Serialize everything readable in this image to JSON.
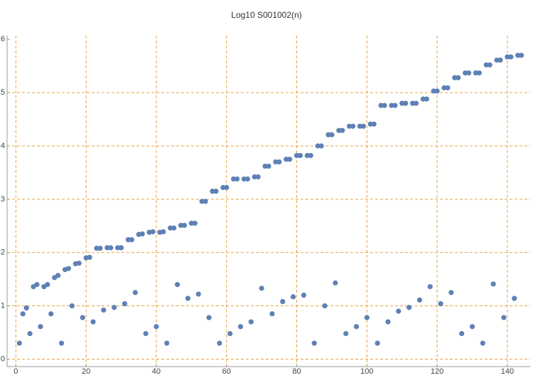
{
  "chart_data": {
    "type": "scatter",
    "title": "Log10 S001002(n)",
    "color": "#5e81b5",
    "grid": true,
    "grid_color": "#e8a23c",
    "xlim": [
      -2.5,
      146.5
    ],
    "ylim": [
      -0.14,
      6.07
    ],
    "xticks": [
      0,
      20,
      40,
      60,
      80,
      100,
      120,
      140
    ],
    "yticks": [
      0,
      1,
      2,
      3,
      4,
      5,
      6
    ],
    "x": [
      1,
      2,
      3,
      4,
      5,
      6,
      7,
      8,
      9,
      10,
      11,
      12,
      13,
      14,
      15,
      16,
      17,
      18,
      19,
      20,
      21,
      22,
      23,
      24,
      25,
      26,
      27,
      28,
      29,
      30,
      31,
      32,
      33,
      34,
      35,
      36,
      37,
      38,
      39,
      40,
      41,
      42,
      43,
      44,
      45,
      46,
      47,
      48,
      49,
      50,
      51,
      52,
      53,
      54,
      55,
      56,
      57,
      58,
      59,
      60,
      61,
      62,
      63,
      64,
      65,
      66,
      67,
      68,
      69,
      70,
      71,
      72,
      73,
      74,
      75,
      76,
      77,
      78,
      79,
      80,
      81,
      82,
      83,
      84,
      85,
      86,
      87,
      88,
      89,
      90,
      91,
      92,
      93,
      94,
      95,
      96,
      97,
      98,
      99,
      100,
      101,
      102,
      103,
      104,
      105,
      106,
      107,
      108,
      109,
      110,
      111,
      112,
      113,
      114,
      115,
      116,
      117,
      118,
      119,
      120,
      121,
      122,
      123,
      124,
      125,
      126,
      127,
      128,
      129,
      130,
      131,
      132,
      133,
      134,
      135,
      136,
      137,
      138,
      139,
      140,
      141,
      142,
      143,
      144
    ],
    "values": [
      0.3,
      0.85,
      0.96,
      0.48,
      1.36,
      1.4,
      0.61,
      1.36,
      1.4,
      0.85,
      1.53,
      1.57,
      0.3,
      1.68,
      1.7,
      1.0,
      1.79,
      1.8,
      0.78,
      1.9,
      1.91,
      0.7,
      2.08,
      2.08,
      0.92,
      2.09,
      2.09,
      0.97,
      2.09,
      2.09,
      1.04,
      2.24,
      2.24,
      1.25,
      2.34,
      2.35,
      0.48,
      2.38,
      2.39,
      0.61,
      2.38,
      2.39,
      0.3,
      2.46,
      2.46,
      1.4,
      2.51,
      2.51,
      1.14,
      2.55,
      2.55,
      1.22,
      2.96,
      2.96,
      0.78,
      3.15,
      3.15,
      0.3,
      3.22,
      3.22,
      0.48,
      3.38,
      3.38,
      0.61,
      3.38,
      3.38,
      0.7,
      3.42,
      3.42,
      1.33,
      3.62,
      3.62,
      0.85,
      3.7,
      3.7,
      1.08,
      3.75,
      3.75,
      1.17,
      3.82,
      3.82,
      1.2,
      3.82,
      3.82,
      0.3,
      4.0,
      4.0,
      1.0,
      4.21,
      4.21,
      1.43,
      4.29,
      4.29,
      0.48,
      4.37,
      4.37,
      0.61,
      4.37,
      4.37,
      0.78,
      4.41,
      4.41,
      0.3,
      4.76,
      4.76,
      0.7,
      4.76,
      4.76,
      0.9,
      4.8,
      4.8,
      0.97,
      4.8,
      4.8,
      1.11,
      4.88,
      4.88,
      1.36,
      5.03,
      5.03,
      1.04,
      5.09,
      5.09,
      1.25,
      5.28,
      5.28,
      0.48,
      5.37,
      5.37,
      0.61,
      5.37,
      5.37,
      0.3,
      5.52,
      5.52,
      1.41,
      5.61,
      5.61,
      0.78,
      5.67,
      5.67,
      1.14,
      5.7,
      5.7
    ]
  }
}
